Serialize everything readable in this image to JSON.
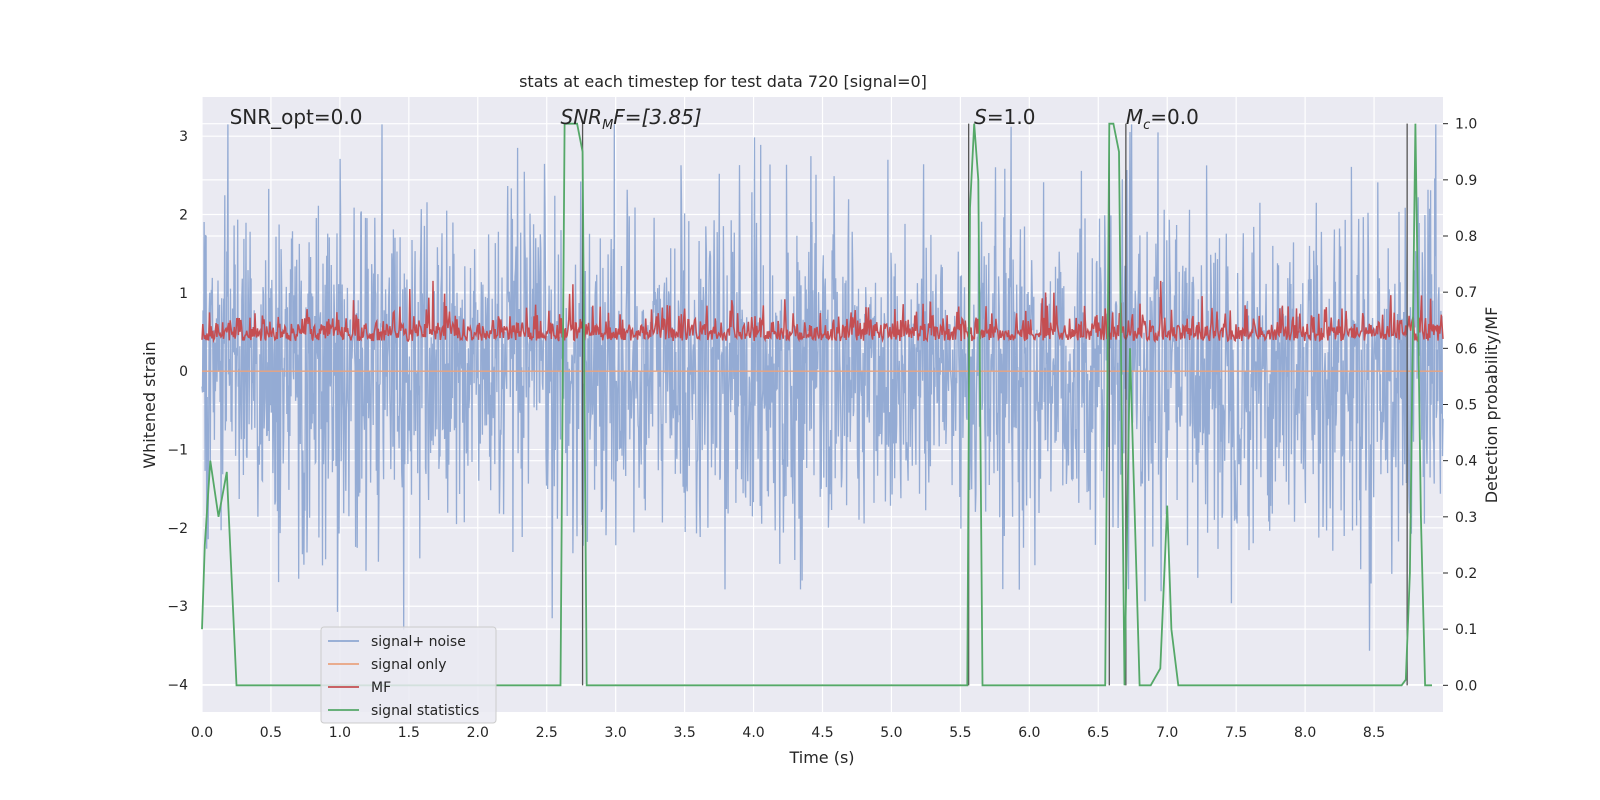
{
  "chart_data": {
    "type": "line",
    "title": "stats at each timestep for test data 720 [signal=0]",
    "xlabel": "Time (s)",
    "ylabel_left": "Whitened strain",
    "ylabel_right": "Detection probability/MF",
    "xlim": [
      0.0,
      9.0
    ],
    "ylim_left": [
      -4.35,
      3.5
    ],
    "ylim_right": [
      -0.0475,
      1.0475
    ],
    "grid": true,
    "legend_position": "lower-left",
    "x_ticks": [
      "0.0",
      "0.5",
      "1.0",
      "1.5",
      "2.0",
      "2.5",
      "3.0",
      "3.5",
      "4.0",
      "4.5",
      "5.0",
      "5.5",
      "6.0",
      "6.5",
      "7.0",
      "7.5",
      "8.0",
      "8.5"
    ],
    "y_left_ticks": [
      "3",
      "2",
      "1",
      "0",
      "−1",
      "−2",
      "−3",
      "−4"
    ],
    "y_right_ticks": [
      "1.0",
      "0.9",
      "0.8",
      "0.7",
      "0.6",
      "0.5",
      "0.4",
      "0.3",
      "0.2",
      "0.1",
      "0.0"
    ],
    "annotations": [
      {
        "text_pre": "SNR_opt=0.0",
        "sub": "",
        "text_post": "",
        "x": 0.2,
        "italic": false
      },
      {
        "text_pre": "SNR",
        "sub": "M",
        "text_post": "F=[3.85]",
        "x": 2.6,
        "italic": true
      },
      {
        "text_pre": "S",
        "sub": "",
        "text_post": "=1.0",
        "x": 5.6,
        "italic": true
      },
      {
        "text_pre": "M",
        "sub": "c",
        "text_post": "=0.0",
        "x": 6.7,
        "italic": true
      }
    ],
    "series": [
      {
        "name": "signal+ noise",
        "axis": "left",
        "color": "#8fa8d2",
        "description": "whitened noise, approx. gaussian std ~1 across 0-9 s"
      },
      {
        "name": "signal only",
        "axis": "left",
        "color": "#e9a37f",
        "constant": 0.0
      },
      {
        "name": "MF",
        "axis": "right",
        "color": "#c44e52",
        "mean": 0.625,
        "range": [
          0.58,
          0.72
        ]
      },
      {
        "name": "signal statistics",
        "axis": "right",
        "color": "#55a868",
        "x": [
          0.0,
          0.02,
          0.06,
          0.12,
          0.18,
          0.25,
          0.3,
          2.6,
          2.63,
          2.66,
          2.72,
          2.76,
          2.79,
          2.82,
          5.55,
          5.57,
          5.6,
          5.63,
          5.66,
          6.55,
          6.58,
          6.61,
          6.65,
          6.69,
          6.73,
          6.8,
          6.88,
          6.95,
          7.0,
          7.03,
          7.08,
          8.7,
          8.73,
          8.76,
          8.8,
          8.84,
          8.87,
          8.92
        ],
        "y": [
          0.1,
          0.25,
          0.4,
          0.3,
          0.38,
          0.0,
          0.0,
          0.0,
          1.0,
          1.0,
          1.0,
          0.95,
          0.0,
          0.0,
          0.0,
          0.85,
          1.0,
          0.9,
          0.0,
          0.0,
          1.0,
          1.0,
          0.95,
          0.0,
          0.6,
          0.0,
          0.0,
          0.03,
          0.32,
          0.1,
          0.0,
          0.0,
          0.01,
          0.2,
          1.0,
          0.3,
          0.0,
          0.0
        ]
      },
      {
        "name": "",
        "axis": "right",
        "color": "#555555",
        "type": "vlines",
        "x": [
          2.76,
          5.56,
          6.58,
          6.7,
          8.74
        ]
      }
    ]
  }
}
